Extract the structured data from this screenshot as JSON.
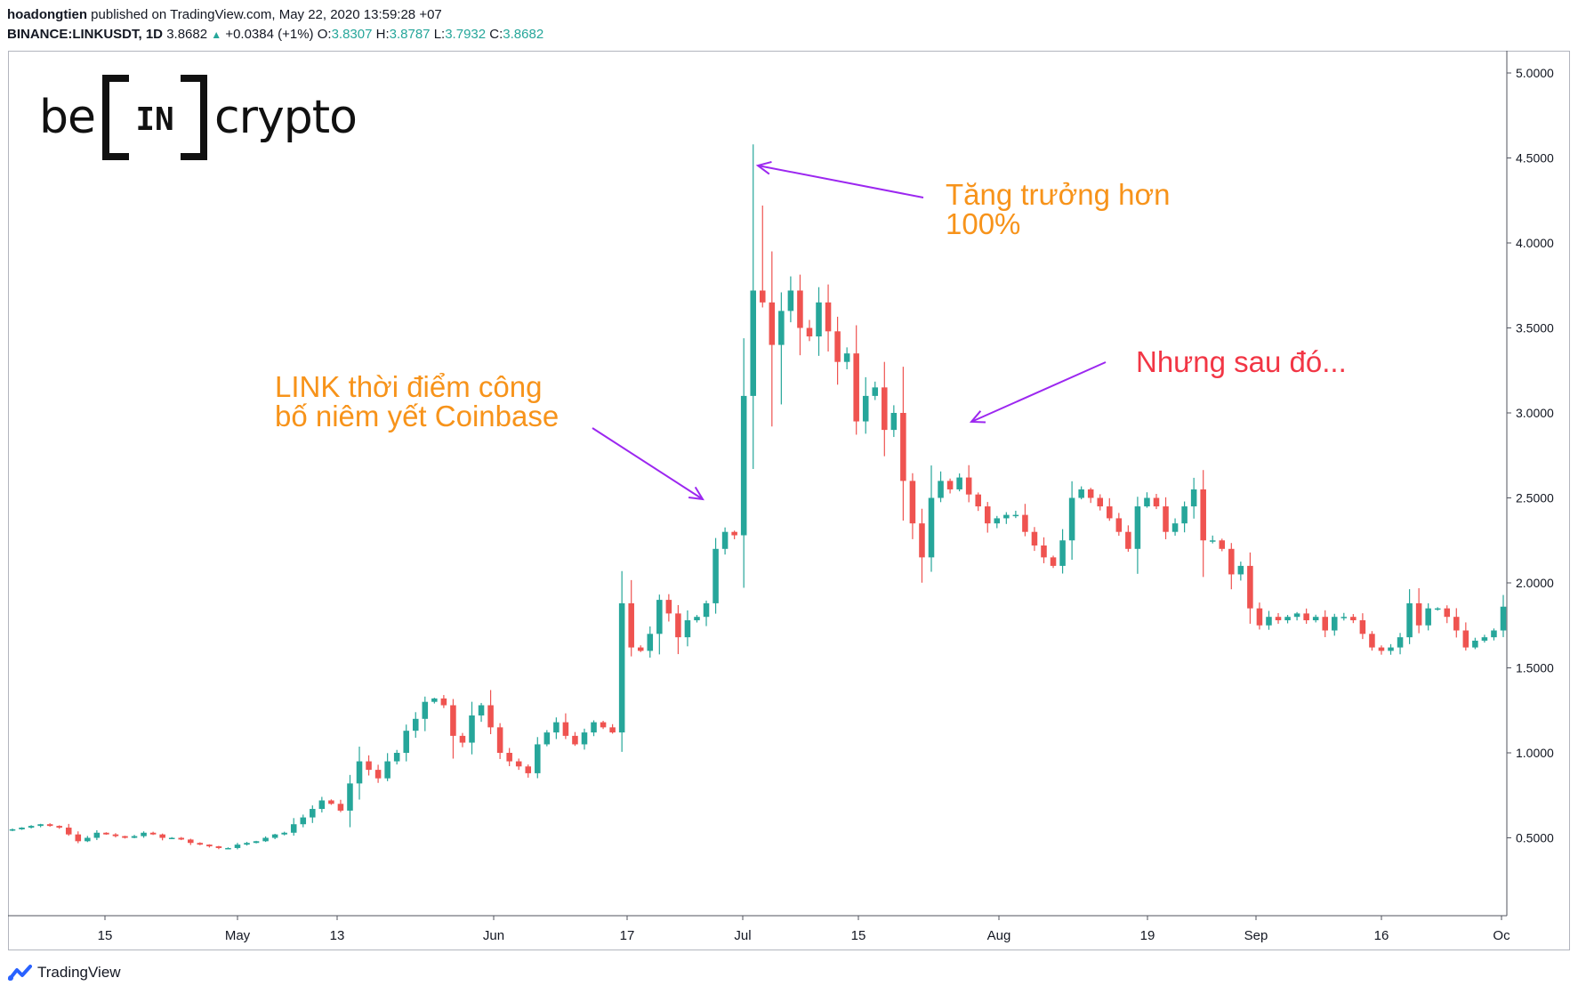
{
  "header": {
    "author": "hoadongtien",
    "published_text": "published on TradingView.com, May 22, 2020 13:59:28 +07",
    "symbol": "BINANCE:LINKUSDT, 1D",
    "last": "3.8682",
    "change": "+0.0384 (+1%)",
    "o_label": "O:",
    "o_value": "3.8307",
    "h_label": "H:",
    "h_value": "3.8787",
    "l_label": "L:",
    "l_value": "3.7932",
    "c_label": "C:",
    "c_value": "3.8682"
  },
  "brand": {
    "left": "be",
    "box": "IN",
    "right": "crypto"
  },
  "footer": {
    "label": "TradingView"
  },
  "annotations": {
    "growth": "Tăng trưởng hơn\n100%",
    "listing": "LINK thời điểm công\nbố niêm yết Coinbase",
    "after": "Nhưng sau đó..."
  },
  "colors": {
    "up": "#26a69a",
    "down": "#ef5350",
    "annotation_orange": "#f7931a",
    "annotation_red": "#f23645",
    "arrow": "#9c27f0"
  },
  "chart_data": {
    "type": "candlestick",
    "ylim": [
      0,
      5.1
    ],
    "yticks": [
      "0.5000",
      "1.0000",
      "1.5000",
      "2.0000",
      "2.5000",
      "3.0000",
      "3.5000",
      "4.0000",
      "4.5000",
      "5.0000"
    ],
    "xticks": [
      "15",
      "May",
      "13",
      "Jun",
      "17",
      "Jul",
      "15",
      "Aug",
      "19",
      "Sep",
      "16",
      "Oc"
    ],
    "closes": [
      0.55,
      0.56,
      0.57,
      0.58,
      0.57,
      0.56,
      0.52,
      0.48,
      0.5,
      0.53,
      0.52,
      0.51,
      0.5,
      0.51,
      0.53,
      0.52,
      0.5,
      0.5,
      0.49,
      0.47,
      0.46,
      0.45,
      0.44,
      0.44,
      0.46,
      0.47,
      0.48,
      0.5,
      0.52,
      0.53,
      0.58,
      0.62,
      0.67,
      0.72,
      0.7,
      0.66,
      0.82,
      0.95,
      0.9,
      0.85,
      0.95,
      1.0,
      1.13,
      1.2,
      1.3,
      1.32,
      1.28,
      1.1,
      1.06,
      1.22,
      1.28,
      1.15,
      1.0,
      0.95,
      0.92,
      0.88,
      1.05,
      1.12,
      1.18,
      1.1,
      1.05,
      1.12,
      1.18,
      1.15,
      1.12,
      1.88,
      1.62,
      1.6,
      1.7,
      1.9,
      1.82,
      1.68,
      1.78,
      1.8,
      1.88,
      2.2,
      2.3,
      2.28,
      3.1,
      3.72,
      3.65,
      3.4,
      3.6,
      3.72,
      3.5,
      3.45,
      3.65,
      3.48,
      3.3,
      3.35,
      2.95,
      3.1,
      3.15,
      2.9,
      3.0,
      2.6,
      2.35,
      2.15,
      2.5,
      2.6,
      2.55,
      2.62,
      2.52,
      2.45,
      2.35,
      2.38,
      2.4,
      2.4,
      2.3,
      2.22,
      2.15,
      2.1,
      2.25,
      2.5,
      2.55,
      2.5,
      2.45,
      2.38,
      2.3,
      2.2,
      2.45,
      2.5,
      2.45,
      2.3,
      2.35,
      2.45,
      2.55,
      2.25,
      2.25,
      2.2,
      2.05,
      2.1,
      1.85,
      1.75,
      1.8,
      1.78,
      1.8,
      1.82,
      1.78,
      1.8,
      1.72,
      1.8,
      1.8,
      1.78,
      1.7,
      1.62,
      1.6,
      1.62,
      1.68,
      1.88,
      1.75,
      1.85,
      1.85,
      1.8,
      1.72,
      1.62,
      1.66,
      1.68,
      1.72,
      1.86
    ]
  }
}
